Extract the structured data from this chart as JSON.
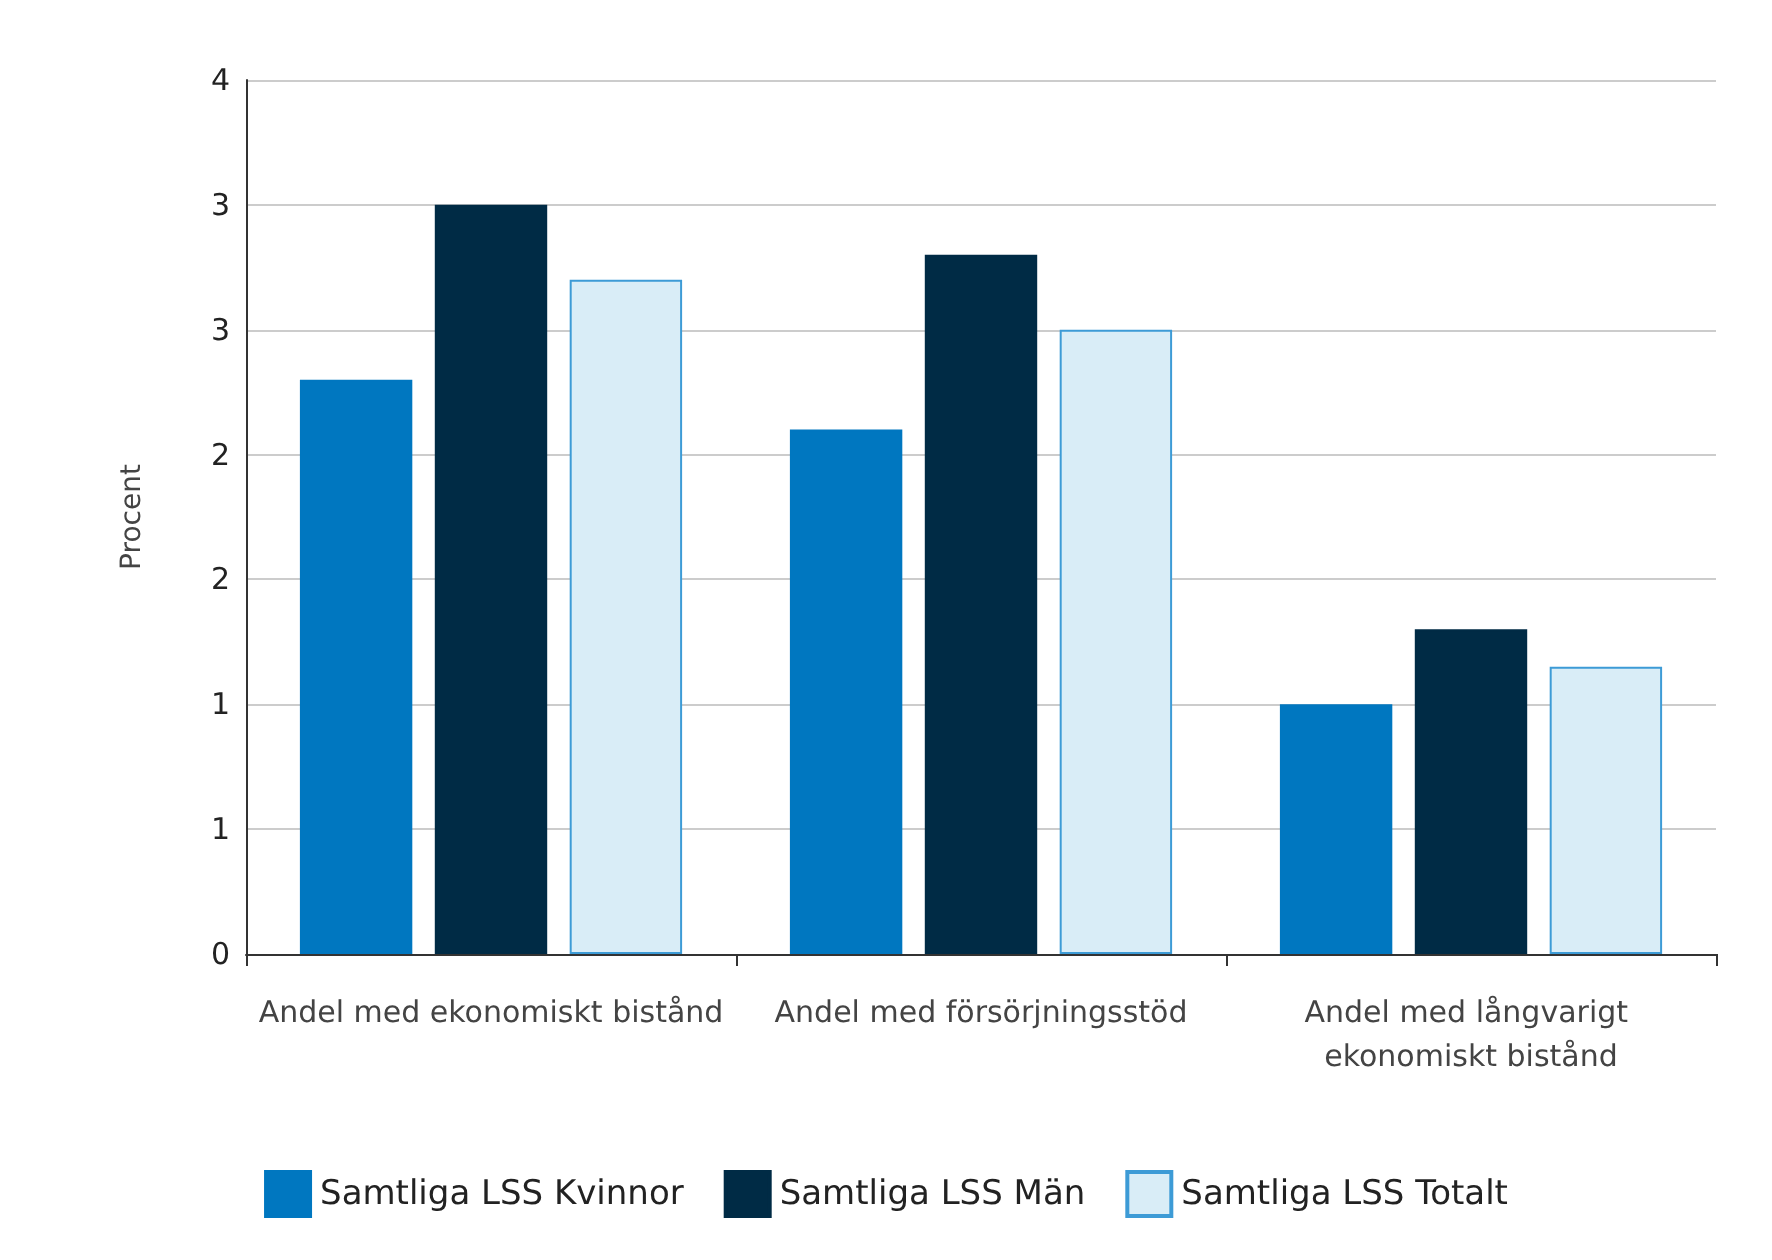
{
  "chart_data": {
    "type": "bar",
    "ylabel": "Procent",
    "categories": [
      "Andel med ekonomiskt bistånd",
      "Andel med försörjningsstöd",
      "Andel med långvarigt ekonomiskt bistånd"
    ],
    "series": [
      {
        "name": "Samtliga LSS Kvinnor",
        "color": "#0077c0",
        "values": [
          2.3,
          2.1,
          1.0
        ]
      },
      {
        "name": "Samtliga LSS Män",
        "color": "#002b45",
        "values": [
          3.0,
          2.8,
          1.3
        ]
      },
      {
        "name": "Samtliga LSS Totalt",
        "color": "#d9edf7",
        "values": [
          2.7,
          2.5,
          1.15
        ]
      }
    ],
    "ylim": [
      0,
      3.5
    ],
    "yticks": [
      0,
      {
        "value": 0.5,
        "label": "1"
      },
      1,
      {
        "value": 1.5,
        "label": "2"
      },
      2,
      {
        "value": 2.5,
        "label": "3"
      },
      3,
      {
        "value": 3.5,
        "label": "4"
      }
    ],
    "grid": "y",
    "legend": "bottom"
  }
}
